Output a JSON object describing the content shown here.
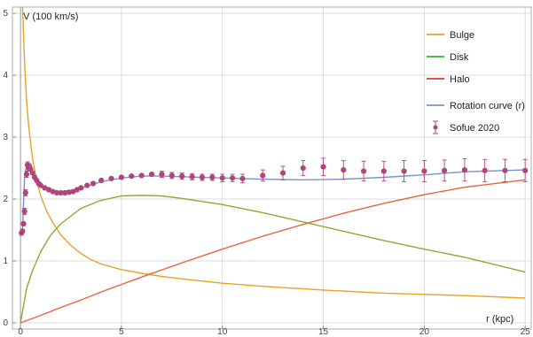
{
  "chart_data": {
    "type": "line",
    "title": "",
    "xlabel": "r (kpc)",
    "ylabel": "V (100 km/s)",
    "xlim": [
      -0.4,
      25.3
    ],
    "ylim": [
      -0.1,
      5.1
    ],
    "grid": true,
    "x_ticks": [
      0,
      5,
      10,
      15,
      20,
      25
    ],
    "y_ticks": [
      0,
      1,
      2,
      3,
      4,
      5
    ],
    "legend_position": "top-right",
    "series": [
      {
        "name": "Bulge",
        "kind": "line",
        "color": "#e8a326",
        "x": [
          0.1,
          0.15,
          0.2,
          0.3,
          0.4,
          0.5,
          0.6,
          0.8,
          1.0,
          1.3,
          1.6,
          2.0,
          2.5,
          3.0,
          3.5,
          4.0,
          5.0,
          6.0,
          7.0,
          8.0,
          10.0,
          12.0,
          15.0,
          18.0,
          20.0,
          22.0,
          25.0
        ],
        "y": [
          5.1,
          4.7,
          4.2,
          3.6,
          3.2,
          2.9,
          2.65,
          2.3,
          2.05,
          1.8,
          1.62,
          1.42,
          1.25,
          1.12,
          1.02,
          0.95,
          0.86,
          0.8,
          0.75,
          0.71,
          0.64,
          0.59,
          0.53,
          0.48,
          0.46,
          0.44,
          0.4
        ]
      },
      {
        "name": "Disk",
        "kind": "line",
        "color": "#89ac2f",
        "x": [
          0.0,
          0.3,
          0.6,
          1.0,
          1.5,
          2.0,
          3.0,
          4.0,
          5.0,
          6.0,
          7.0,
          8.0,
          10.0,
          12.0,
          14.0,
          16.0,
          18.0,
          20.0,
          22.0,
          25.0
        ],
        "y": [
          0.0,
          0.55,
          0.85,
          1.15,
          1.42,
          1.6,
          1.85,
          1.98,
          2.05,
          2.06,
          2.05,
          2.01,
          1.91,
          1.78,
          1.63,
          1.48,
          1.33,
          1.19,
          1.06,
          0.82
        ]
      },
      {
        "name": "Halo",
        "kind": "line",
        "color": "#e8653a",
        "x": [
          0.0,
          1.0,
          2.0,
          3.0,
          4.0,
          5.0,
          6.0,
          8.0,
          10.0,
          12.0,
          14.0,
          16.0,
          18.0,
          20.0,
          22.0,
          25.0
        ],
        "y": [
          0.0,
          0.12,
          0.25,
          0.37,
          0.5,
          0.62,
          0.74,
          0.97,
          1.19,
          1.4,
          1.59,
          1.77,
          1.93,
          2.07,
          2.19,
          2.31
        ]
      },
      {
        "name": "Rotation curve (r)",
        "kind": "line",
        "color": "#7b90d0",
        "x": [
          0.1,
          0.2,
          0.3,
          0.4,
          0.5,
          0.7,
          1.0,
          1.3,
          1.6,
          2.0,
          2.5,
          3.0,
          3.5,
          4.0,
          5.0,
          6.0,
          7.0,
          8.0,
          10.0,
          12.0,
          14.0,
          16.0,
          18.0,
          20.0,
          22.0,
          25.0
        ],
        "y": [
          1.5,
          2.35,
          2.53,
          2.52,
          2.48,
          2.38,
          2.24,
          2.15,
          2.1,
          2.09,
          2.12,
          2.18,
          2.23,
          2.28,
          2.34,
          2.37,
          2.37,
          2.36,
          2.34,
          2.32,
          2.31,
          2.32,
          2.35,
          2.39,
          2.44,
          2.47
        ]
      },
      {
        "name": "Sofue 2020",
        "kind": "errorbar",
        "color": "#b0457a",
        "x": [
          0.05,
          0.1,
          0.15,
          0.2,
          0.25,
          0.3,
          0.35,
          0.4,
          0.45,
          0.5,
          0.6,
          0.7,
          0.8,
          0.9,
          1.0,
          1.2,
          1.4,
          1.6,
          1.8,
          2.0,
          2.2,
          2.4,
          2.6,
          2.8,
          3.0,
          3.3,
          3.6,
          4.0,
          4.5,
          5.0,
          5.5,
          6.0,
          6.5,
          7.0,
          7.5,
          8.0,
          8.5,
          9.0,
          9.5,
          10.0,
          10.5,
          11.0,
          12.0,
          13.0,
          14.0,
          15.0,
          16.0,
          17.0,
          18.0,
          19.0,
          20.0,
          21.0,
          22.0,
          23.0,
          24.0,
          25.0
        ],
        "y": [
          1.45,
          1.48,
          1.6,
          1.8,
          2.1,
          2.4,
          2.55,
          2.5,
          2.52,
          2.48,
          2.42,
          2.35,
          2.3,
          2.25,
          2.22,
          2.18,
          2.15,
          2.12,
          2.1,
          2.1,
          2.1,
          2.11,
          2.12,
          2.15,
          2.18,
          2.22,
          2.25,
          2.3,
          2.33,
          2.35,
          2.37,
          2.38,
          2.4,
          2.4,
          2.38,
          2.37,
          2.36,
          2.35,
          2.35,
          2.34,
          2.34,
          2.33,
          2.38,
          2.42,
          2.5,
          2.52,
          2.47,
          2.45,
          2.45,
          2.45,
          2.45,
          2.46,
          2.47,
          2.46,
          2.46,
          2.46
        ],
        "err": [
          0.03,
          0.03,
          0.04,
          0.05,
          0.05,
          0.05,
          0.05,
          0.05,
          0.05,
          0.04,
          0.03,
          0.03,
          0.03,
          0.03,
          0.03,
          0.03,
          0.03,
          0.03,
          0.03,
          0.03,
          0.03,
          0.03,
          0.03,
          0.03,
          0.03,
          0.04,
          0.04,
          0.04,
          0.04,
          0.04,
          0.04,
          0.04,
          0.04,
          0.05,
          0.05,
          0.05,
          0.05,
          0.05,
          0.05,
          0.06,
          0.06,
          0.07,
          0.09,
          0.11,
          0.12,
          0.14,
          0.15,
          0.16,
          0.16,
          0.17,
          0.17,
          0.17,
          0.18,
          0.18,
          0.18,
          0.18
        ]
      }
    ],
    "legend": [
      {
        "label": "Bulge",
        "color": "#e8a326",
        "kind": "line"
      },
      {
        "label": "Disk",
        "color": "#2fb62f",
        "kind": "line"
      },
      {
        "label": "Halo",
        "color": "#e33b2f",
        "kind": "line"
      },
      {
        "label": "Rotation curve (r)",
        "color": "#7b90d0",
        "kind": "line"
      },
      {
        "label": "Sofue 2020",
        "color": "#b0457a",
        "kind": "errorbar"
      }
    ]
  }
}
